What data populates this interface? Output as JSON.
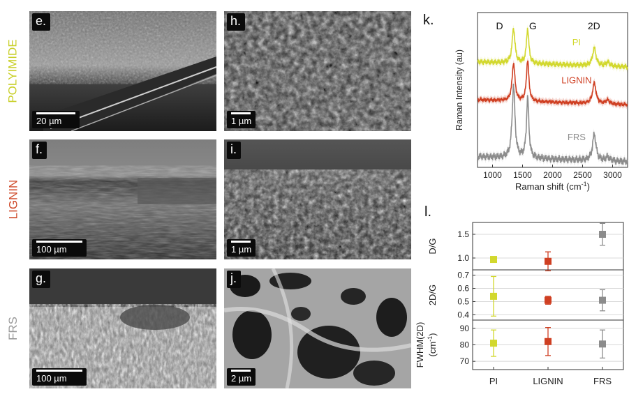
{
  "row_labels": [
    {
      "text": "POLYIMIDE",
      "color": "#c8cf28"
    },
    {
      "text": "LIGNIN",
      "color": "#cf4a2a"
    },
    {
      "text": "FRS",
      "color": "#9a9a9a"
    }
  ],
  "panels": [
    {
      "label": "e.",
      "scale": "20 µm"
    },
    {
      "label": "h.",
      "scale": "1 µm"
    },
    {
      "label": "f.",
      "scale": "100 µm"
    },
    {
      "label": "i.",
      "scale": "1 µm"
    },
    {
      "label": "g.",
      "scale": "100 µm"
    },
    {
      "label": "j.",
      "scale": "2 µm"
    }
  ],
  "raman": {
    "panel_label": "k.",
    "ylabel": "Raman Intensity (au)",
    "xlabel": "Raman shift (cm",
    "xlabel_sup": "-1",
    "xlabel_end": ")",
    "x_ticks": [
      1000,
      1500,
      2000,
      2500,
      3000
    ],
    "xlim": [
      750,
      3250
    ],
    "peak_labels": [
      {
        "text": "D",
        "x": 1350
      },
      {
        "text": "G",
        "x": 1580
      },
      {
        "text": "2D",
        "x": 2690
      }
    ],
    "series": [
      {
        "name": "PI",
        "color": "#d2d82e",
        "offset": 1.55,
        "D": 0.55,
        "G": 0.55,
        "P2": 0.28,
        "noise": 0.03
      },
      {
        "name": "LIGNIN",
        "color": "#cf3f22",
        "offset": 0.95,
        "D": 0.6,
        "G": 0.65,
        "P2": 0.33,
        "noise": 0.02
      },
      {
        "name": "FRS",
        "color": "#8c8c8c",
        "offset": 0.05,
        "D": 1.15,
        "G": 0.95,
        "P2": 0.42,
        "noise": 0.04
      }
    ]
  },
  "ratios": {
    "panel_label": "l.",
    "categories": [
      "PI",
      "LIGNIN",
      "FRS"
    ],
    "colors": [
      "#d2d82e",
      "#cf3f22",
      "#8c8c8c"
    ],
    "subplots": [
      {
        "ylabel": "D/G",
        "ylim": [
          0.75,
          1.75
        ],
        "ticks": [
          1.0,
          1.5
        ],
        "tick_labels": [
          "1.0",
          "1.5"
        ],
        "values": [
          0.97,
          0.93,
          1.5
        ],
        "err": [
          0.03,
          0.2,
          0.23
        ]
      },
      {
        "ylabel": "2D/G",
        "ylim": [
          0.36,
          0.74
        ],
        "ticks": [
          0.4,
          0.5,
          0.6,
          0.7
        ],
        "tick_labels": [
          "0.4",
          "0.5",
          "0.6",
          "0.7"
        ],
        "values": [
          0.54,
          0.51,
          0.51
        ],
        "err": [
          0.15,
          0.03,
          0.08
        ]
      },
      {
        "ylabel": "FWHM(2D)",
        "ylabel2": "(cm",
        "ylabel2_sup": "-1",
        "ylabel2_end": ")",
        "ylim": [
          65,
          95
        ],
        "ticks": [
          70,
          80,
          90
        ],
        "tick_labels": [
          "70",
          "80",
          "90"
        ],
        "values": [
          81,
          82,
          80.5
        ],
        "err": [
          8,
          8.5,
          8.5
        ]
      }
    ]
  }
}
